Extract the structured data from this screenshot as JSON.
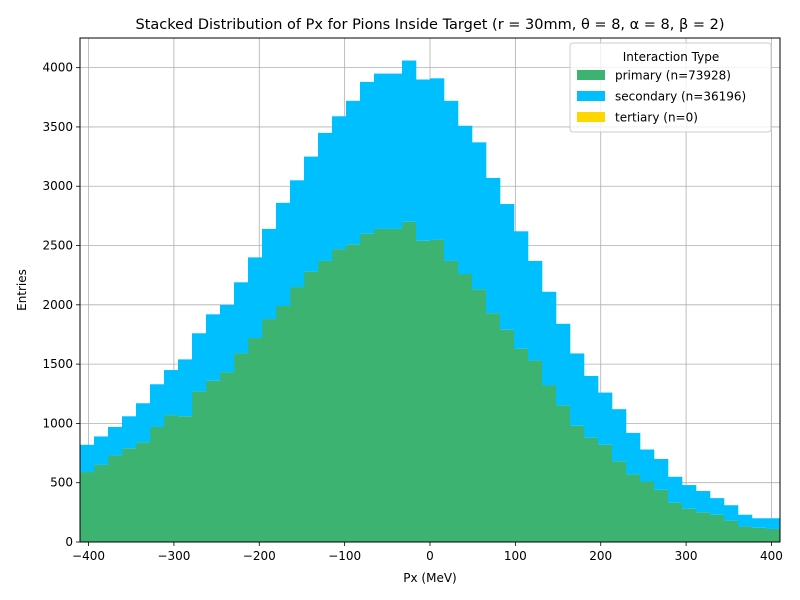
{
  "chart_data": {
    "type": "bar",
    "stacked": true,
    "title": "Stacked Distribution of Px for Pions Inside Target (r = 30mm, θ = 8, α = 8, β = 2)",
    "xlabel": "Px (MeV)",
    "ylabel": "Entries",
    "xlim": [
      -410,
      410
    ],
    "ylim": [
      0,
      4250
    ],
    "x_ticks": [
      -400,
      -300,
      -200,
      -100,
      0,
      100,
      200,
      300,
      400
    ],
    "y_ticks": [
      0,
      500,
      1000,
      1500,
      2000,
      2500,
      3000,
      3500,
      4000
    ],
    "grid": true,
    "bin_edges": [
      -410,
      -393.6,
      -377.2,
      -360.8,
      -344.4,
      -328,
      -311.6,
      -295.2,
      -278.8,
      -262.4,
      -246,
      -229.6,
      -213.2,
      -196.8,
      -180.4,
      -164,
      -147.6,
      -131.2,
      -114.8,
      -98.4,
      -82,
      -65.6,
      -49.2,
      -32.8,
      -16.4,
      0,
      16.4,
      32.8,
      49.2,
      65.6,
      82,
      98.4,
      114.8,
      131.2,
      147.6,
      164,
      180.4,
      196.8,
      213.2,
      229.6,
      246,
      262.4,
      278.8,
      295.2,
      311.6,
      328,
      344.4,
      360.8,
      377.2,
      393.6,
      410
    ],
    "legend": {
      "title": "Interaction Type",
      "position": "upper-right"
    },
    "series": [
      {
        "name": "primary (n=73928)",
        "color": "#3cb371",
        "values": [
          590,
          650,
          730,
          790,
          840,
          970,
          1070,
          1060,
          1270,
          1360,
          1430,
          1590,
          1720,
          1880,
          1990,
          2150,
          2280,
          2370,
          2470,
          2510,
          2600,
          2640,
          2640,
          2700,
          2540,
          2550,
          2370,
          2260,
          2130,
          1930,
          1790,
          1630,
          1530,
          1320,
          1150,
          980,
          880,
          820,
          680,
          570,
          510,
          440,
          330,
          280,
          250,
          230,
          180,
          130,
          120,
          110
        ]
      },
      {
        "name": "secondary (n=36196)",
        "color": "#00bfff",
        "values": [
          230,
          240,
          240,
          270,
          330,
          360,
          380,
          480,
          490,
          560,
          570,
          600,
          680,
          760,
          870,
          900,
          970,
          1080,
          1120,
          1210,
          1280,
          1310,
          1310,
          1360,
          1360,
          1360,
          1350,
          1250,
          1240,
          1140,
          1060,
          990,
          840,
          790,
          690,
          610,
          520,
          440,
          440,
          350,
          270,
          260,
          220,
          200,
          180,
          140,
          130,
          100,
          80,
          90
        ]
      },
      {
        "name": "tertiary (n=0)",
        "color": "#ffd700",
        "values": [
          0,
          0,
          0,
          0,
          0,
          0,
          0,
          0,
          0,
          0,
          0,
          0,
          0,
          0,
          0,
          0,
          0,
          0,
          0,
          0,
          0,
          0,
          0,
          0,
          0,
          0,
          0,
          0,
          0,
          0,
          0,
          0,
          0,
          0,
          0,
          0,
          0,
          0,
          0,
          0,
          0,
          0,
          0,
          0,
          0,
          0,
          0,
          0,
          0,
          0
        ]
      }
    ]
  }
}
